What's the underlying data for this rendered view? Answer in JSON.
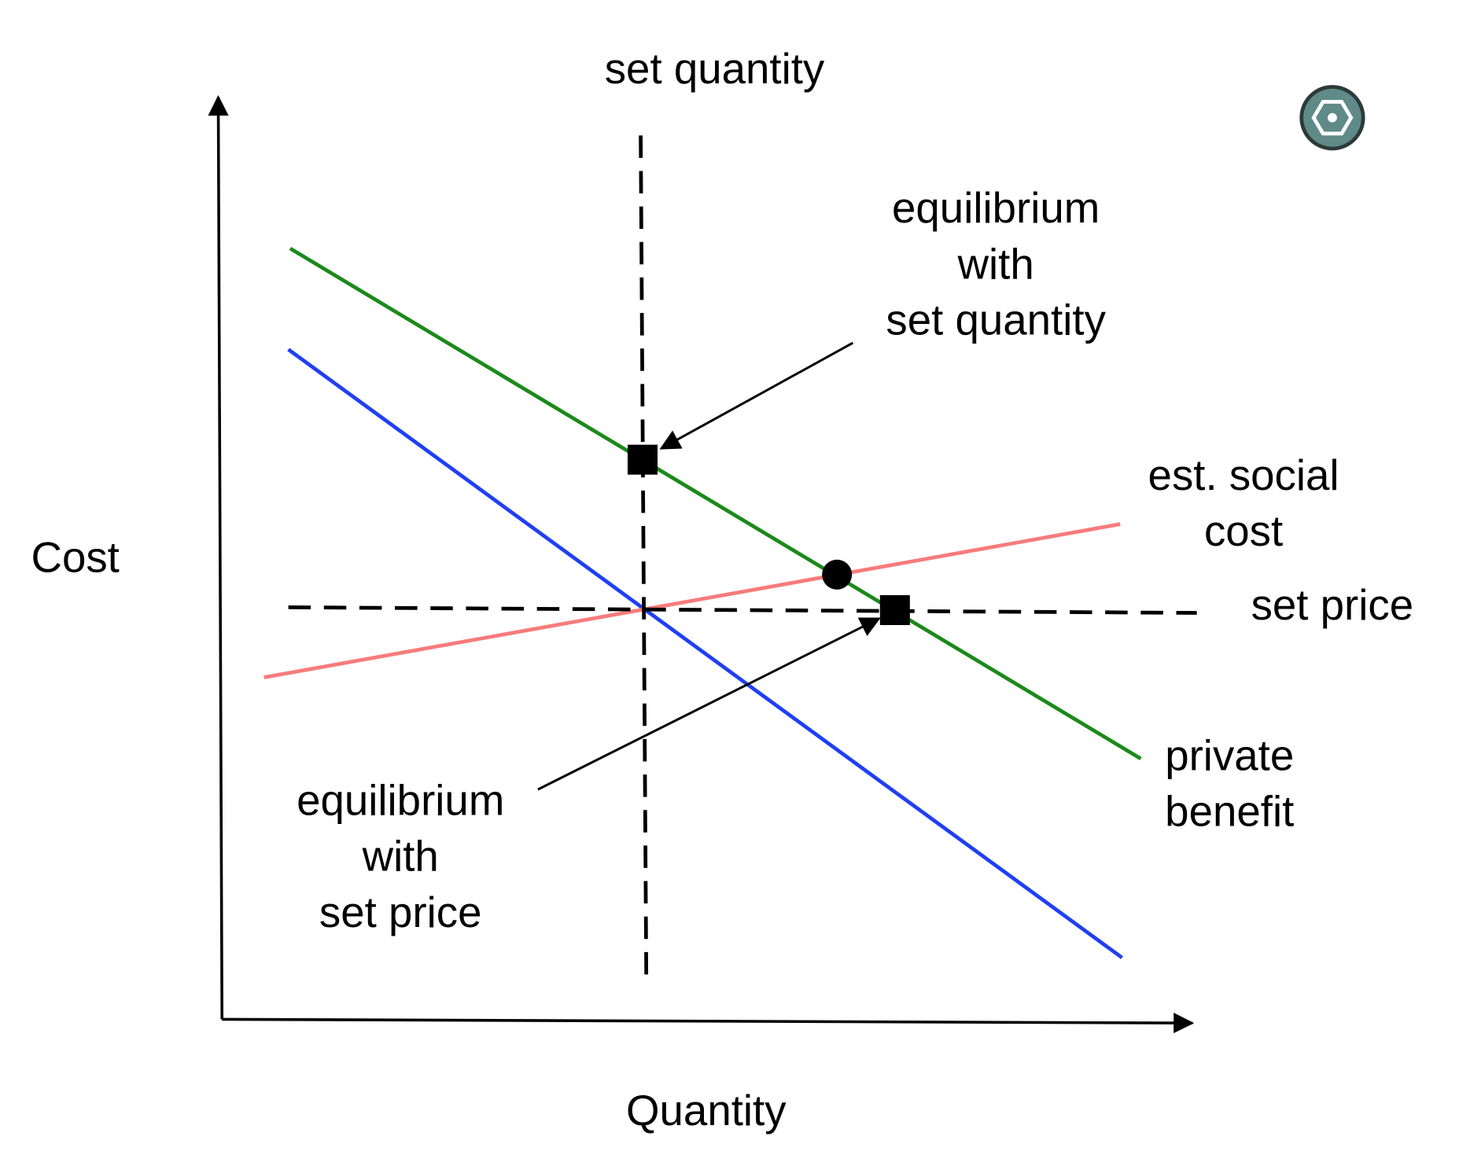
{
  "axes": {
    "y_label": "Cost",
    "x_label": "Quantity"
  },
  "labels": {
    "set_quantity": "set quantity",
    "set_price": "set price",
    "equilibrium_set_quantity": [
      "equilibrium",
      "with",
      "set quantity"
    ],
    "social_cost": [
      "est. social",
      "cost"
    ],
    "private_benefit": [
      "private",
      "benefit"
    ],
    "equilibrium_set_price": [
      "equilibrium",
      "with",
      "set price"
    ]
  }
}
